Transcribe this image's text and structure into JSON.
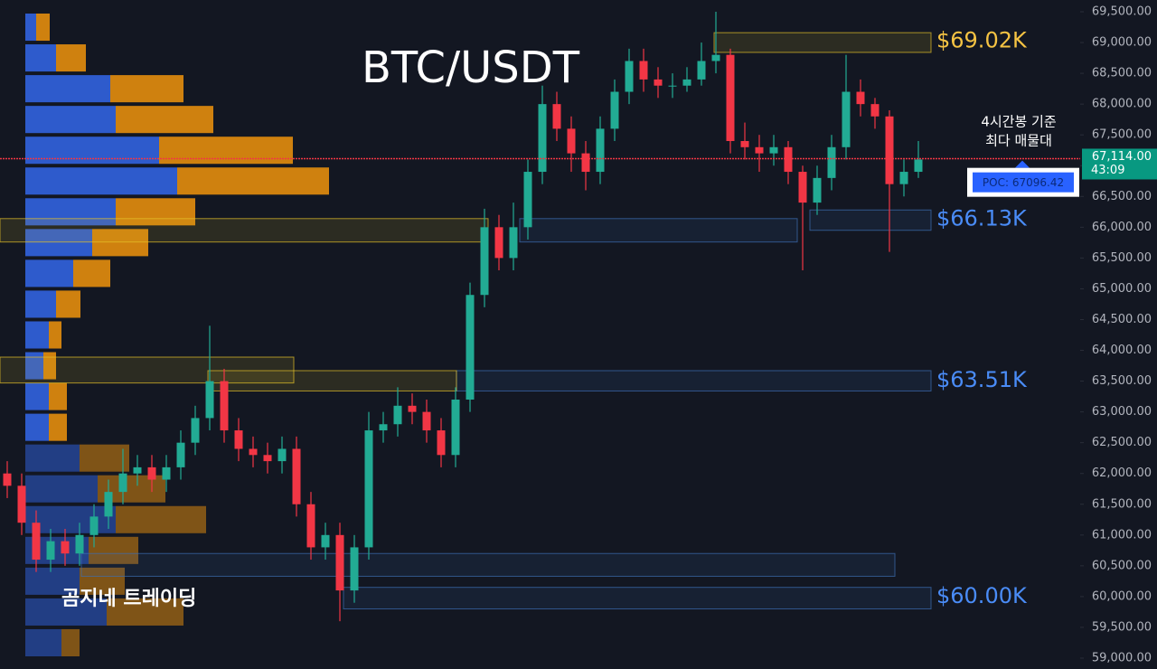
{
  "chart_data": {
    "type": "candlestick",
    "title": "BTC/USDT",
    "watermark": "곰지네 트레이딩",
    "up_color": "#22ab94",
    "down_color": "#f23645",
    "open": [
      62000,
      61800,
      61200,
      60600,
      60900,
      60700,
      61000,
      61300,
      61700,
      62000,
      62100,
      61900,
      62100,
      62500,
      62900,
      63500,
      62700,
      62400,
      62300,
      62200,
      62400,
      61500,
      60800,
      61000,
      60100,
      60800,
      62700,
      62800,
      63100,
      63000,
      62700,
      62300,
      63200,
      64900,
      66000,
      65500,
      66000,
      66900,
      68000,
      67600,
      67200,
      66900,
      67600,
      68200,
      68700,
      68400,
      68300,
      68300,
      68400,
      68700,
      68800,
      67400,
      67300,
      67200,
      67300,
      66900,
      66400,
      66800,
      67300,
      68200,
      68000,
      67800,
      66700,
      66900
    ],
    "high": [
      62200,
      62000,
      61400,
      61100,
      61100,
      61200,
      61500,
      61900,
      62400,
      62300,
      62300,
      62300,
      62700,
      63100,
      64400,
      63700,
      62900,
      62600,
      62500,
      62600,
      62600,
      61700,
      61200,
      61200,
      61000,
      63000,
      63000,
      63400,
      63300,
      63200,
      62900,
      63400,
      65100,
      66300,
      66200,
      66400,
      67100,
      68300,
      68200,
      67800,
      67400,
      67800,
      68400,
      68900,
      68900,
      68600,
      68500,
      68600,
      69000,
      69500,
      68900,
      67700,
      67500,
      67500,
      67400,
      67000,
      67000,
      67500,
      68800,
      68400,
      68100,
      67900,
      67100,
      67400
    ],
    "low": [
      61600,
      61000,
      60400,
      60400,
      60500,
      60500,
      60800,
      61100,
      61500,
      61800,
      61700,
      61700,
      61900,
      62300,
      62700,
      62500,
      62200,
      62100,
      62000,
      62000,
      61300,
      60600,
      60600,
      59600,
      59900,
      60600,
      62500,
      62600,
      62800,
      62500,
      62100,
      62100,
      63000,
      64700,
      65300,
      65300,
      65800,
      66700,
      67400,
      66900,
      66600,
      66700,
      67400,
      68000,
      68200,
      68100,
      68100,
      68200,
      68300,
      68500,
      67200,
      67100,
      66900,
      67000,
      66700,
      65300,
      66200,
      66600,
      67100,
      67800,
      67600,
      65600,
      66500,
      66800
    ],
    "close": [
      61800,
      61200,
      60600,
      60900,
      60700,
      61000,
      61300,
      61700,
      62000,
      62100,
      61900,
      62100,
      62500,
      62900,
      63500,
      62700,
      62400,
      62300,
      62200,
      62400,
      61500,
      60800,
      61000,
      60100,
      60800,
      62700,
      62800,
      63100,
      63000,
      62700,
      62300,
      63200,
      64900,
      66000,
      65500,
      66000,
      66900,
      68000,
      67600,
      67200,
      66900,
      67600,
      68200,
      68700,
      68400,
      68300,
      68300,
      68400,
      68700,
      68800,
      67400,
      67300,
      67200,
      67300,
      66900,
      66400,
      66800,
      67300,
      68200,
      68000,
      67800,
      66700,
      66900,
      67100
    ],
    "ylim": [
      59000,
      69500
    ],
    "yticks": [
      {
        "value": 59000,
        "label": "59,000.00"
      },
      {
        "value": 59500,
        "label": "59,500.00"
      },
      {
        "value": 60000,
        "label": "60,000.00"
      },
      {
        "value": 60500,
        "label": "60,500.00"
      },
      {
        "value": 61000,
        "label": "61,000.00"
      },
      {
        "value": 61500,
        "label": "61,500.00"
      },
      {
        "value": 62000,
        "label": "62,000.00"
      },
      {
        "value": 62500,
        "label": "62,500.00"
      },
      {
        "value": 63000,
        "label": "63,000.00"
      },
      {
        "value": 63500,
        "label": "63,500.00"
      },
      {
        "value": 64000,
        "label": "64,000.00"
      },
      {
        "value": 64500,
        "label": "64,500.00"
      },
      {
        "value": 65000,
        "label": "65,000.00"
      },
      {
        "value": 65500,
        "label": "65,500.00"
      },
      {
        "value": 66000,
        "label": "66,000.00"
      },
      {
        "value": 66500,
        "label": "66,500.00"
      },
      {
        "value": 67000,
        "label": "67,000.00"
      },
      {
        "value": 67500,
        "label": "67,500.00"
      },
      {
        "value": 68000,
        "label": "68,000.00"
      },
      {
        "value": 68500,
        "label": "68,500.00"
      },
      {
        "value": 69000,
        "label": "69,000.00"
      },
      {
        "value": 69500,
        "label": "69,500.00"
      }
    ],
    "volume_profile": {
      "prices": [
        69250,
        68750,
        68250,
        67750,
        67250,
        66750,
        66250,
        65750,
        65250,
        64750,
        64250,
        63750,
        63250,
        62750,
        62250,
        61750,
        61250,
        60750,
        60250,
        59750,
        59250
      ],
      "buy": [
        12,
        34,
        94,
        100,
        148,
        168,
        100,
        74,
        53,
        34,
        26,
        20,
        26,
        26,
        60,
        80,
        100,
        70,
        60,
        90,
        40
      ],
      "sell": [
        15,
        33,
        81,
        108,
        148,
        168,
        88,
        62,
        41,
        27,
        14,
        14,
        20,
        20,
        55,
        75,
        100,
        55,
        50,
        85,
        20
      ],
      "buy_color": "#2f5fd6",
      "sell_color": "#d9870f"
    },
    "zones": [
      {
        "low": 68840,
        "high": 69160,
        "color": "#e6c229",
        "label": "$69.02K",
        "level": 69020
      },
      {
        "low": 65950,
        "high": 66280,
        "color": "#3d6fb5",
        "label": "$66.13K",
        "level": 66130
      },
      {
        "low": 65760,
        "high": 66140,
        "color": "#3d6fb5"
      },
      {
        "low": 65760,
        "high": 66140,
        "color": "#e6c229"
      },
      {
        "low": 63340,
        "high": 63670,
        "color": "#3d6fb5",
        "label": "$63.51K",
        "level": 63510
      },
      {
        "low": 63340,
        "high": 63670,
        "color": "#e6c229"
      },
      {
        "low": 63470,
        "high": 63890,
        "color": "#e6c229"
      },
      {
        "low": 60330,
        "high": 60700,
        "color": "#3d6fb5"
      },
      {
        "low": 59800,
        "high": 60150,
        "color": "#3d6fb5",
        "label": "$60.00K",
        "level": 60000
      }
    ],
    "last_price": {
      "value": 67114,
      "label": "67,114.00",
      "countdown": "43:09",
      "color": "#f23645"
    },
    "poc": {
      "value": 67096.42,
      "label": "POC: 67096.42"
    },
    "annotation": [
      "4시간봉 기준",
      "최다 매물대"
    ]
  }
}
